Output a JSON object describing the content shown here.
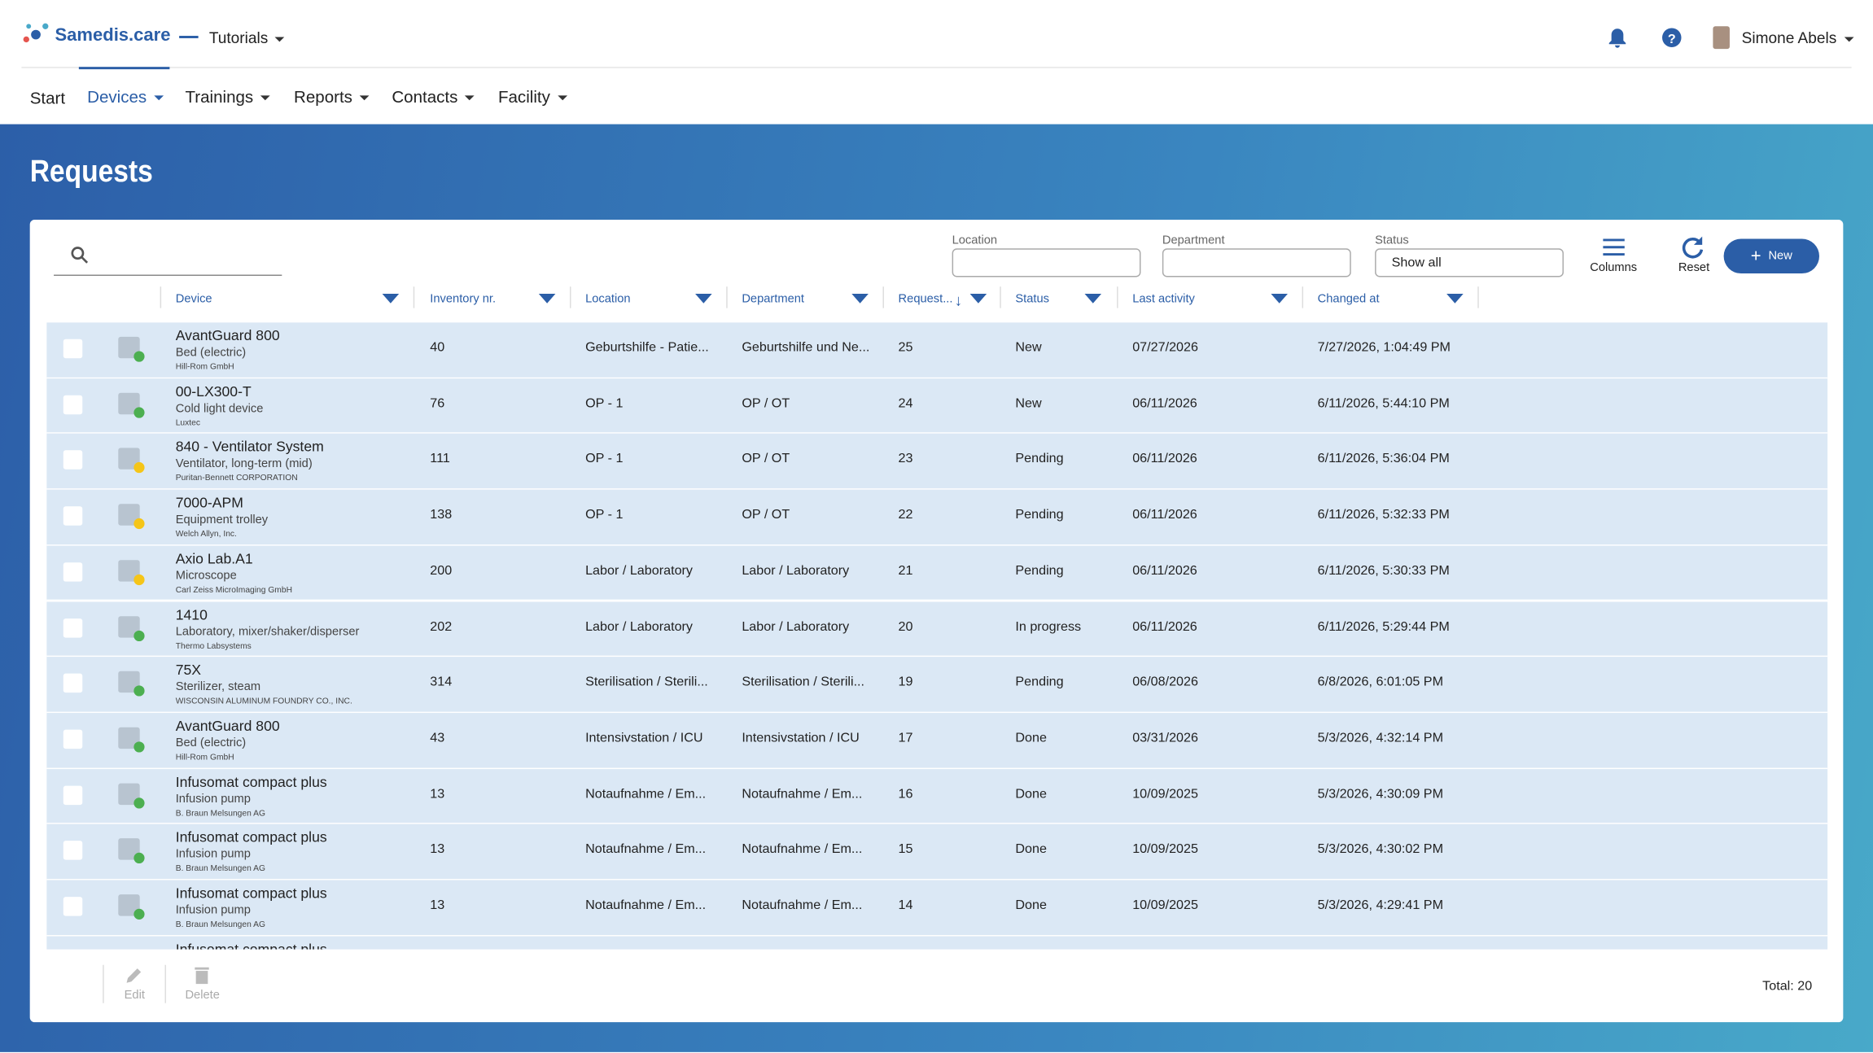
{
  "header": {
    "logo": "Samedis.care",
    "workspace": "Tutorials",
    "user": "Simone Abels"
  },
  "nav": [
    "Start",
    "Devices",
    "Trainings",
    "Reports",
    "Contacts",
    "Facility"
  ],
  "page_title": "Requests",
  "filters": {
    "location": "Location",
    "department": "Department",
    "status": "Status",
    "status_value": "Show all"
  },
  "toolbar": {
    "columns": "Columns",
    "reset": "Reset",
    "new": "New"
  },
  "table": {
    "columns": [
      "Device",
      "Inventory nr.",
      "Location",
      "Department",
      "Request...",
      "Status",
      "Last activity",
      "Changed at"
    ],
    "rows": [
      {
        "device": "AvantGuard 800",
        "type": "Bed (electric)",
        "manufacturer": "Hill-Rom GmbH",
        "inventory": 40,
        "location": "Geburtshilfe - Patie...",
        "department": "Geburtshilfe und Ne...",
        "request": 25,
        "status": "New",
        "last_activity": "07/27/2026",
        "changed_at": "7/27/2026, 1:04:49 PM",
        "dot": "#4caf50"
      },
      {
        "device": "00-LX300-T",
        "type": "Cold light device",
        "manufacturer": "Luxtec",
        "inventory": 76,
        "location": "OP - 1",
        "department": "OP / OT",
        "request": 24,
        "status": "New",
        "last_activity": "06/11/2026",
        "changed_at": "6/11/2026, 5:44:10 PM",
        "dot": "#4caf50"
      },
      {
        "device": "840 - Ventilator System",
        "type": "Ventilator, long-term (mid)",
        "manufacturer": "Puritan-Bennett CORPORATION",
        "inventory": 111,
        "location": "OP - 1",
        "department": "OP / OT",
        "request": 23,
        "status": "Pending",
        "last_activity": "06/11/2026",
        "changed_at": "6/11/2026, 5:36:04 PM",
        "dot": "#f5c518"
      },
      {
        "device": "7000-APM",
        "type": "Equipment trolley",
        "manufacturer": "Welch Allyn, Inc.",
        "inventory": 138,
        "location": "OP - 1",
        "department": "OP / OT",
        "request": 22,
        "status": "Pending",
        "last_activity": "06/11/2026",
        "changed_at": "6/11/2026, 5:32:33 PM",
        "dot": "#f5c518"
      },
      {
        "device": "Axio Lab.A1",
        "type": "Microscope",
        "manufacturer": "Carl Zeiss MicroImaging GmbH",
        "inventory": 200,
        "location": "Labor / Laboratory",
        "department": "Labor / Laboratory",
        "request": 21,
        "status": "Pending",
        "last_activity": "06/11/2026",
        "changed_at": "6/11/2026, 5:30:33 PM",
        "dot": "#f5c518"
      },
      {
        "device": "1410",
        "type": "Laboratory, mixer/shaker/disperser",
        "manufacturer": "Thermo Labsystems",
        "inventory": 202,
        "location": "Labor / Laboratory",
        "department": "Labor / Laboratory",
        "request": 20,
        "status": "In progress",
        "last_activity": "06/11/2026",
        "changed_at": "6/11/2026, 5:29:44 PM",
        "dot": "#4caf50"
      },
      {
        "device": "75X",
        "type": "Sterilizer, steam",
        "manufacturer": "WISCONSIN ALUMINUM FOUNDRY CO., INC.",
        "inventory": 314,
        "location": "Sterilisation / Sterili...",
        "department": "Sterilisation / Sterili...",
        "request": 19,
        "status": "Pending",
        "last_activity": "06/08/2026",
        "changed_at": "6/8/2026, 6:01:05 PM",
        "dot": "#4caf50"
      },
      {
        "device": "AvantGuard 800",
        "type": "Bed (electric)",
        "manufacturer": "Hill-Rom GmbH",
        "inventory": 43,
        "location": "Intensivstation / ICU",
        "department": "Intensivstation / ICU",
        "request": 17,
        "status": "Done",
        "last_activity": "03/31/2026",
        "changed_at": "5/3/2026, 4:32:14 PM",
        "dot": "#4caf50"
      },
      {
        "device": "Infusomat compact plus",
        "type": "Infusion pump",
        "manufacturer": "B. Braun Melsungen AG",
        "inventory": 13,
        "location": "Notaufnahme / Em...",
        "department": "Notaufnahme / Em...",
        "request": 16,
        "status": "Done",
        "last_activity": "10/09/2025",
        "changed_at": "5/3/2026, 4:30:09 PM",
        "dot": "#4caf50"
      },
      {
        "device": "Infusomat compact plus",
        "type": "Infusion pump",
        "manufacturer": "B. Braun Melsungen AG",
        "inventory": 13,
        "location": "Notaufnahme / Em...",
        "department": "Notaufnahme / Em...",
        "request": 15,
        "status": "Done",
        "last_activity": "10/09/2025",
        "changed_at": "5/3/2026, 4:30:02 PM",
        "dot": "#4caf50"
      },
      {
        "device": "Infusomat compact plus",
        "type": "Infusion pump",
        "manufacturer": "B. Braun Melsungen AG",
        "inventory": 13,
        "location": "Notaufnahme / Em...",
        "department": "Notaufnahme / Em...",
        "request": 14,
        "status": "Done",
        "last_activity": "10/09/2025",
        "changed_at": "5/3/2026, 4:29:41 PM",
        "dot": "#4caf50"
      },
      {
        "device": "Infusomat compact plus"
      }
    ]
  },
  "footer": {
    "edit": "Edit",
    "delete": "Delete",
    "total": "Total: 20"
  }
}
